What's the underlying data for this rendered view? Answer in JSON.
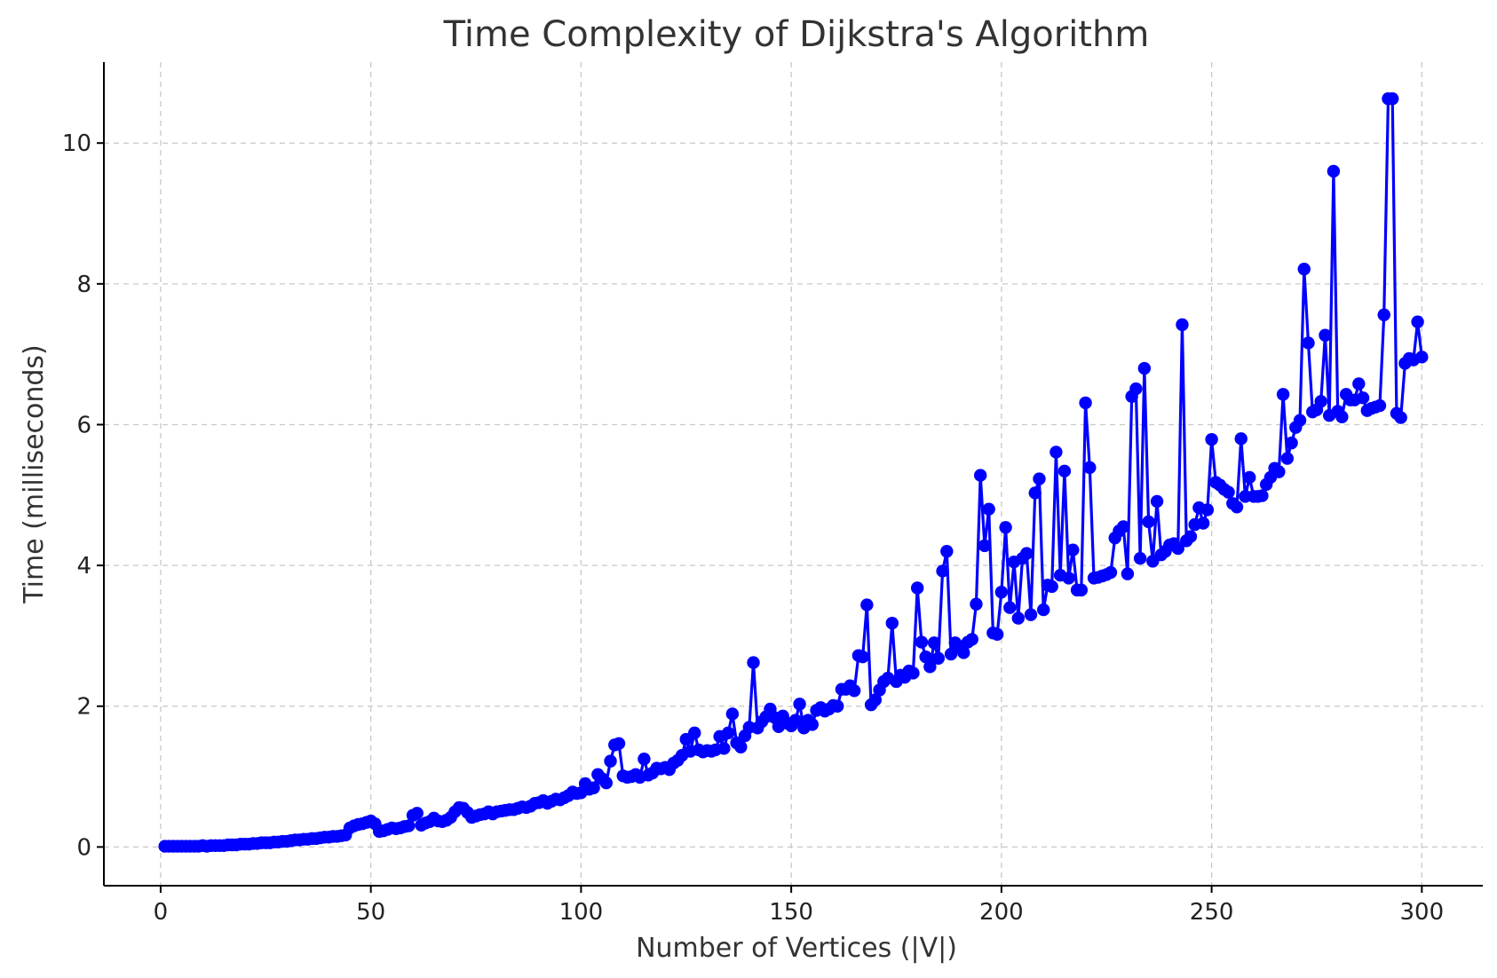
{
  "chart_data": {
    "type": "line",
    "title": "Time Complexity of Dijkstra's Algorithm",
    "xlabel": "Number of Vertices (|V|)",
    "ylabel": "Time (milliseconds)",
    "xlim": [
      -13.5,
      314.5
    ],
    "ylim": [
      -0.55,
      11.15
    ],
    "xticks": [
      0,
      50,
      100,
      150,
      200,
      250,
      300
    ],
    "yticks": [
      0,
      2,
      4,
      6,
      8,
      10
    ],
    "grid": true,
    "legend": "none",
    "line_color": "#0000ff",
    "marker": "circle",
    "series": [
      {
        "x": [
          1,
          2,
          3,
          4,
          5,
          6,
          7,
          8,
          9,
          10,
          11,
          12,
          13,
          14,
          15,
          16,
          17,
          18,
          19,
          20,
          21,
          22,
          23,
          24,
          25,
          26,
          27,
          28,
          29,
          30,
          31,
          32,
          33,
          34,
          35,
          36,
          37,
          38,
          39,
          40,
          41,
          42,
          43,
          44,
          45,
          46,
          47,
          48,
          49,
          50,
          51,
          52,
          53,
          54,
          55,
          56,
          57,
          58,
          59,
          60,
          61,
          62,
          63,
          64,
          65,
          66,
          67,
          68,
          69,
          70,
          71,
          72,
          73,
          74,
          75,
          76,
          77,
          78,
          79,
          80,
          81,
          82,
          83,
          84,
          85,
          86,
          87,
          88,
          89,
          90,
          91,
          92,
          93,
          94,
          95,
          96,
          97,
          98,
          99,
          100,
          101,
          102,
          103,
          104,
          105,
          106,
          107,
          108,
          109,
          110,
          111,
          112,
          113,
          114,
          115,
          116,
          117,
          118,
          119,
          120,
          121,
          122,
          123,
          124,
          125,
          126,
          127,
          128,
          129,
          130,
          131,
          132,
          133,
          134,
          135,
          136,
          137,
          138,
          139,
          140,
          141,
          142,
          143,
          144,
          145,
          146,
          147,
          148,
          149,
          150,
          151,
          152,
          153,
          154,
          155,
          156,
          157,
          158,
          159,
          160,
          161,
          162,
          163,
          164,
          165,
          166,
          167,
          168,
          169,
          170,
          171,
          172,
          173,
          174,
          175,
          176,
          177,
          178,
          179,
          180,
          181,
          182,
          183,
          184,
          185,
          186,
          187,
          188,
          189,
          190,
          191,
          192,
          193,
          194,
          195,
          196,
          197,
          198,
          199,
          200,
          201,
          202,
          203,
          204,
          205,
          206,
          207,
          208,
          209,
          210,
          211,
          212,
          213,
          214,
          215,
          216,
          217,
          218,
          219,
          220,
          221,
          222,
          223,
          224,
          225,
          226,
          227,
          228,
          229,
          230,
          231,
          232,
          233,
          234,
          235,
          236,
          237,
          238,
          239,
          240,
          241,
          242,
          243,
          244,
          245,
          246,
          247,
          248,
          249,
          250,
          251,
          252,
          253,
          254,
          255,
          256,
          257,
          258,
          259,
          260,
          261,
          262,
          263,
          264,
          265,
          266,
          267,
          268,
          269,
          270,
          271,
          272,
          273,
          274,
          275,
          276,
          277,
          278,
          279,
          280,
          281,
          282,
          283,
          284,
          285,
          286,
          287,
          288,
          289,
          290,
          291,
          292,
          293,
          294,
          295,
          296,
          297,
          298,
          299,
          300
        ],
        "y": [
          0.01,
          0.01,
          0.01,
          0.01,
          0.01,
          0.01,
          0.01,
          0.01,
          0.01,
          0.02,
          0.01,
          0.02,
          0.02,
          0.02,
          0.02,
          0.03,
          0.03,
          0.03,
          0.04,
          0.04,
          0.04,
          0.05,
          0.05,
          0.06,
          0.06,
          0.06,
          0.07,
          0.07,
          0.08,
          0.08,
          0.09,
          0.1,
          0.1,
          0.11,
          0.11,
          0.12,
          0.12,
          0.13,
          0.14,
          0.14,
          0.15,
          0.15,
          0.16,
          0.17,
          0.27,
          0.3,
          0.32,
          0.33,
          0.35,
          0.37,
          0.33,
          0.22,
          0.23,
          0.25,
          0.27,
          0.26,
          0.27,
          0.29,
          0.3,
          0.45,
          0.48,
          0.31,
          0.34,
          0.36,
          0.41,
          0.37,
          0.36,
          0.38,
          0.42,
          0.5,
          0.56,
          0.55,
          0.49,
          0.42,
          0.44,
          0.46,
          0.47,
          0.5,
          0.47,
          0.5,
          0.51,
          0.52,
          0.53,
          0.53,
          0.55,
          0.57,
          0.56,
          0.58,
          0.62,
          0.63,
          0.66,
          0.62,
          0.65,
          0.68,
          0.67,
          0.7,
          0.73,
          0.78,
          0.76,
          0.77,
          0.9,
          0.82,
          0.84,
          1.03,
          0.97,
          0.91,
          1.22,
          1.45,
          1.47,
          1.01,
          0.99,
          1.0,
          1.03,
          0.99,
          1.25,
          1.02,
          1.05,
          1.12,
          1.11,
          1.13,
          1.1,
          1.19,
          1.23,
          1.3,
          1.53,
          1.36,
          1.62,
          1.38,
          1.35,
          1.37,
          1.36,
          1.38,
          1.57,
          1.4,
          1.62,
          1.89,
          1.48,
          1.42,
          1.58,
          1.7,
          2.62,
          1.69,
          1.78,
          1.85,
          1.96,
          1.84,
          1.71,
          1.86,
          1.76,
          1.72,
          1.8,
          2.03,
          1.69,
          1.8,
          1.74,
          1.94,
          1.98,
          1.93,
          1.96,
          2.01,
          2.0,
          2.24,
          2.24,
          2.29,
          2.22,
          2.72,
          2.7,
          3.44,
          2.02,
          2.09,
          2.23,
          2.35,
          2.4,
          3.18,
          2.35,
          2.44,
          2.41,
          2.5,
          2.47,
          3.68,
          2.91,
          2.7,
          2.56,
          2.9,
          2.68,
          3.92,
          4.2,
          2.74,
          2.9,
          2.85,
          2.76,
          2.91,
          2.95,
          3.45,
          5.28,
          4.28,
          4.8,
          3.04,
          3.02,
          3.62,
          4.54,
          3.4,
          4.05,
          3.25,
          4.1,
          4.17,
          3.3,
          5.03,
          5.23,
          3.37,
          3.72,
          3.7,
          5.61,
          3.86,
          5.34,
          3.82,
          4.22,
          3.65,
          3.65,
          6.31,
          5.39,
          3.82,
          3.83,
          3.85,
          3.87,
          3.9,
          4.39,
          4.49,
          4.55,
          3.88,
          6.4,
          6.51,
          4.1,
          6.8,
          4.62,
          4.06,
          4.91,
          4.15,
          4.2,
          4.29,
          4.31,
          4.24,
          7.42,
          4.35,
          4.41,
          4.58,
          4.82,
          4.6,
          4.79,
          5.79,
          5.18,
          5.14,
          5.08,
          5.04,
          4.88,
          4.83,
          5.8,
          4.98,
          5.25,
          4.98,
          4.98,
          4.99,
          5.15,
          5.25,
          5.38,
          5.33,
          6.43,
          5.52,
          5.74,
          5.96,
          6.06,
          8.21,
          7.16,
          6.18,
          6.21,
          6.33,
          7.27,
          6.13,
          9.6,
          6.19,
          6.11,
          6.43,
          6.35,
          6.35,
          6.58,
          6.38,
          6.2,
          6.23,
          6.25,
          6.27,
          7.56,
          10.63,
          10.63,
          6.16,
          6.1,
          6.87,
          6.94,
          6.92,
          7.46,
          6.96
        ]
      }
    ]
  }
}
